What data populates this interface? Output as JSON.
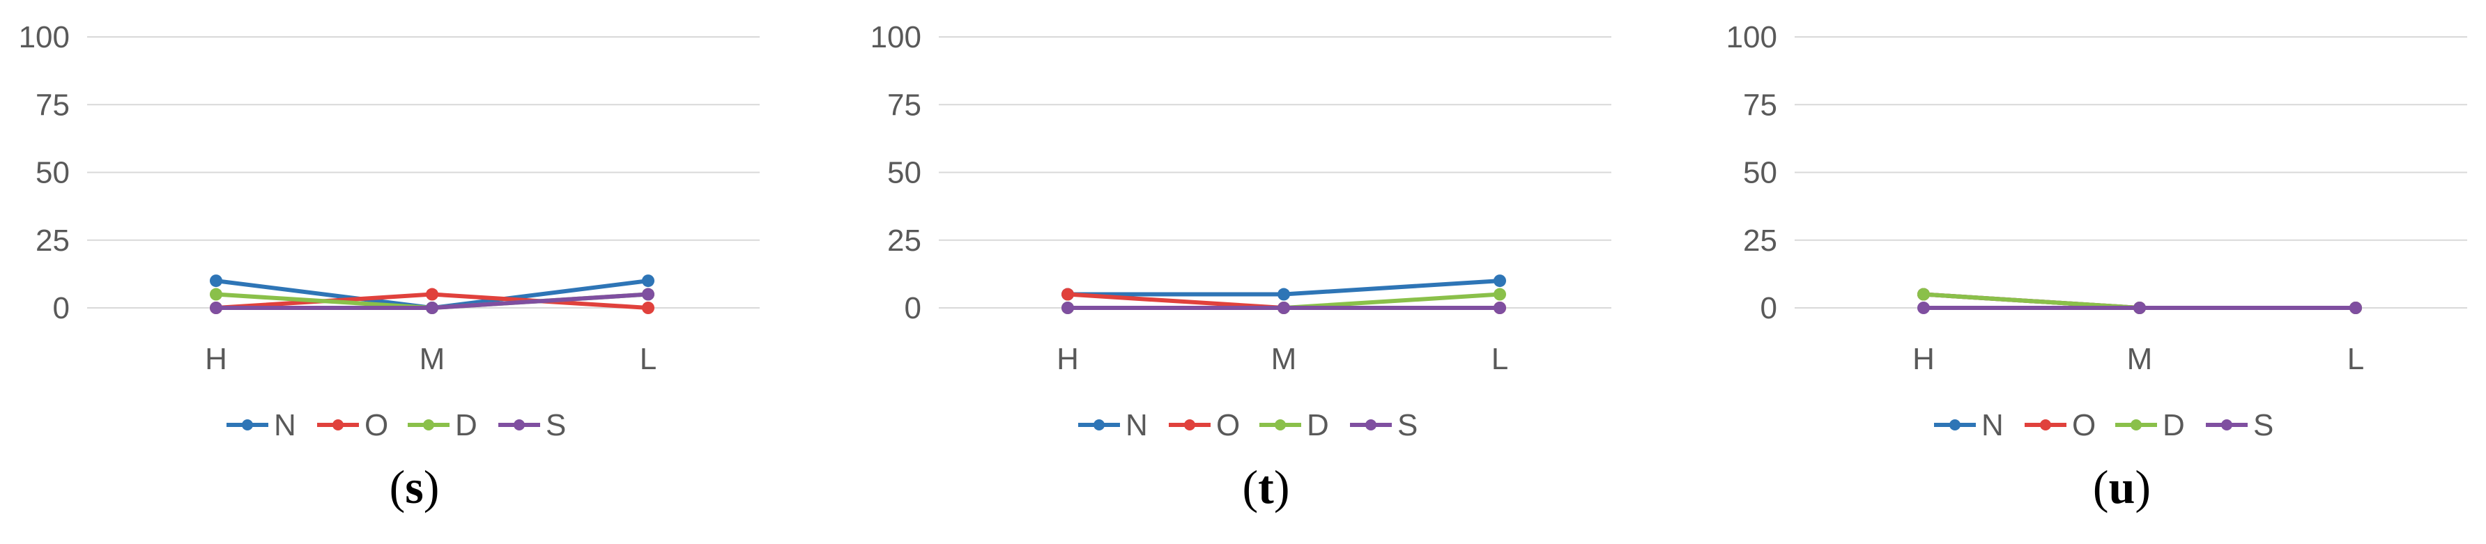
{
  "colors": {
    "N": "#2e75b6",
    "O": "#e0413c",
    "D": "#8ac04a",
    "S": "#7f4fa0",
    "grid": "#d9d9d9",
    "text": "#595959"
  },
  "legend": [
    "N",
    "O",
    "D",
    "S"
  ],
  "chart_data": [
    {
      "type": "line",
      "caption": "s",
      "categories": [
        "H",
        "M",
        "L"
      ],
      "yticks": [
        "0",
        "25",
        "50",
        "75",
        "100"
      ],
      "ylim": [
        0,
        100
      ],
      "series": [
        {
          "name": "N",
          "values": [
            10,
            0,
            10
          ]
        },
        {
          "name": "O",
          "values": [
            0,
            5,
            0
          ]
        },
        {
          "name": "D",
          "values": [
            5,
            0,
            5
          ]
        },
        {
          "name": "S",
          "values": [
            0,
            0,
            5
          ]
        }
      ]
    },
    {
      "type": "line",
      "caption": "t",
      "categories": [
        "H",
        "M",
        "L"
      ],
      "yticks": [
        "0",
        "25",
        "50",
        "75",
        "100"
      ],
      "ylim": [
        0,
        100
      ],
      "series": [
        {
          "name": "N",
          "values": [
            5,
            5,
            10
          ]
        },
        {
          "name": "O",
          "values": [
            5,
            0,
            0
          ]
        },
        {
          "name": "D",
          "values": [
            0,
            0,
            5
          ]
        },
        {
          "name": "S",
          "values": [
            0,
            0,
            0
          ]
        }
      ]
    },
    {
      "type": "line",
      "caption": "u",
      "categories": [
        "H",
        "M",
        "L"
      ],
      "yticks": [
        "0",
        "25",
        "50",
        "75",
        "100"
      ],
      "ylim": [
        0,
        100
      ],
      "series": [
        {
          "name": "N",
          "values": [
            5,
            0,
            0
          ]
        },
        {
          "name": "O",
          "values": [
            5,
            0,
            0
          ]
        },
        {
          "name": "D",
          "values": [
            5,
            0,
            0
          ]
        },
        {
          "name": "S",
          "values": [
            0,
            0,
            0
          ]
        }
      ]
    }
  ]
}
